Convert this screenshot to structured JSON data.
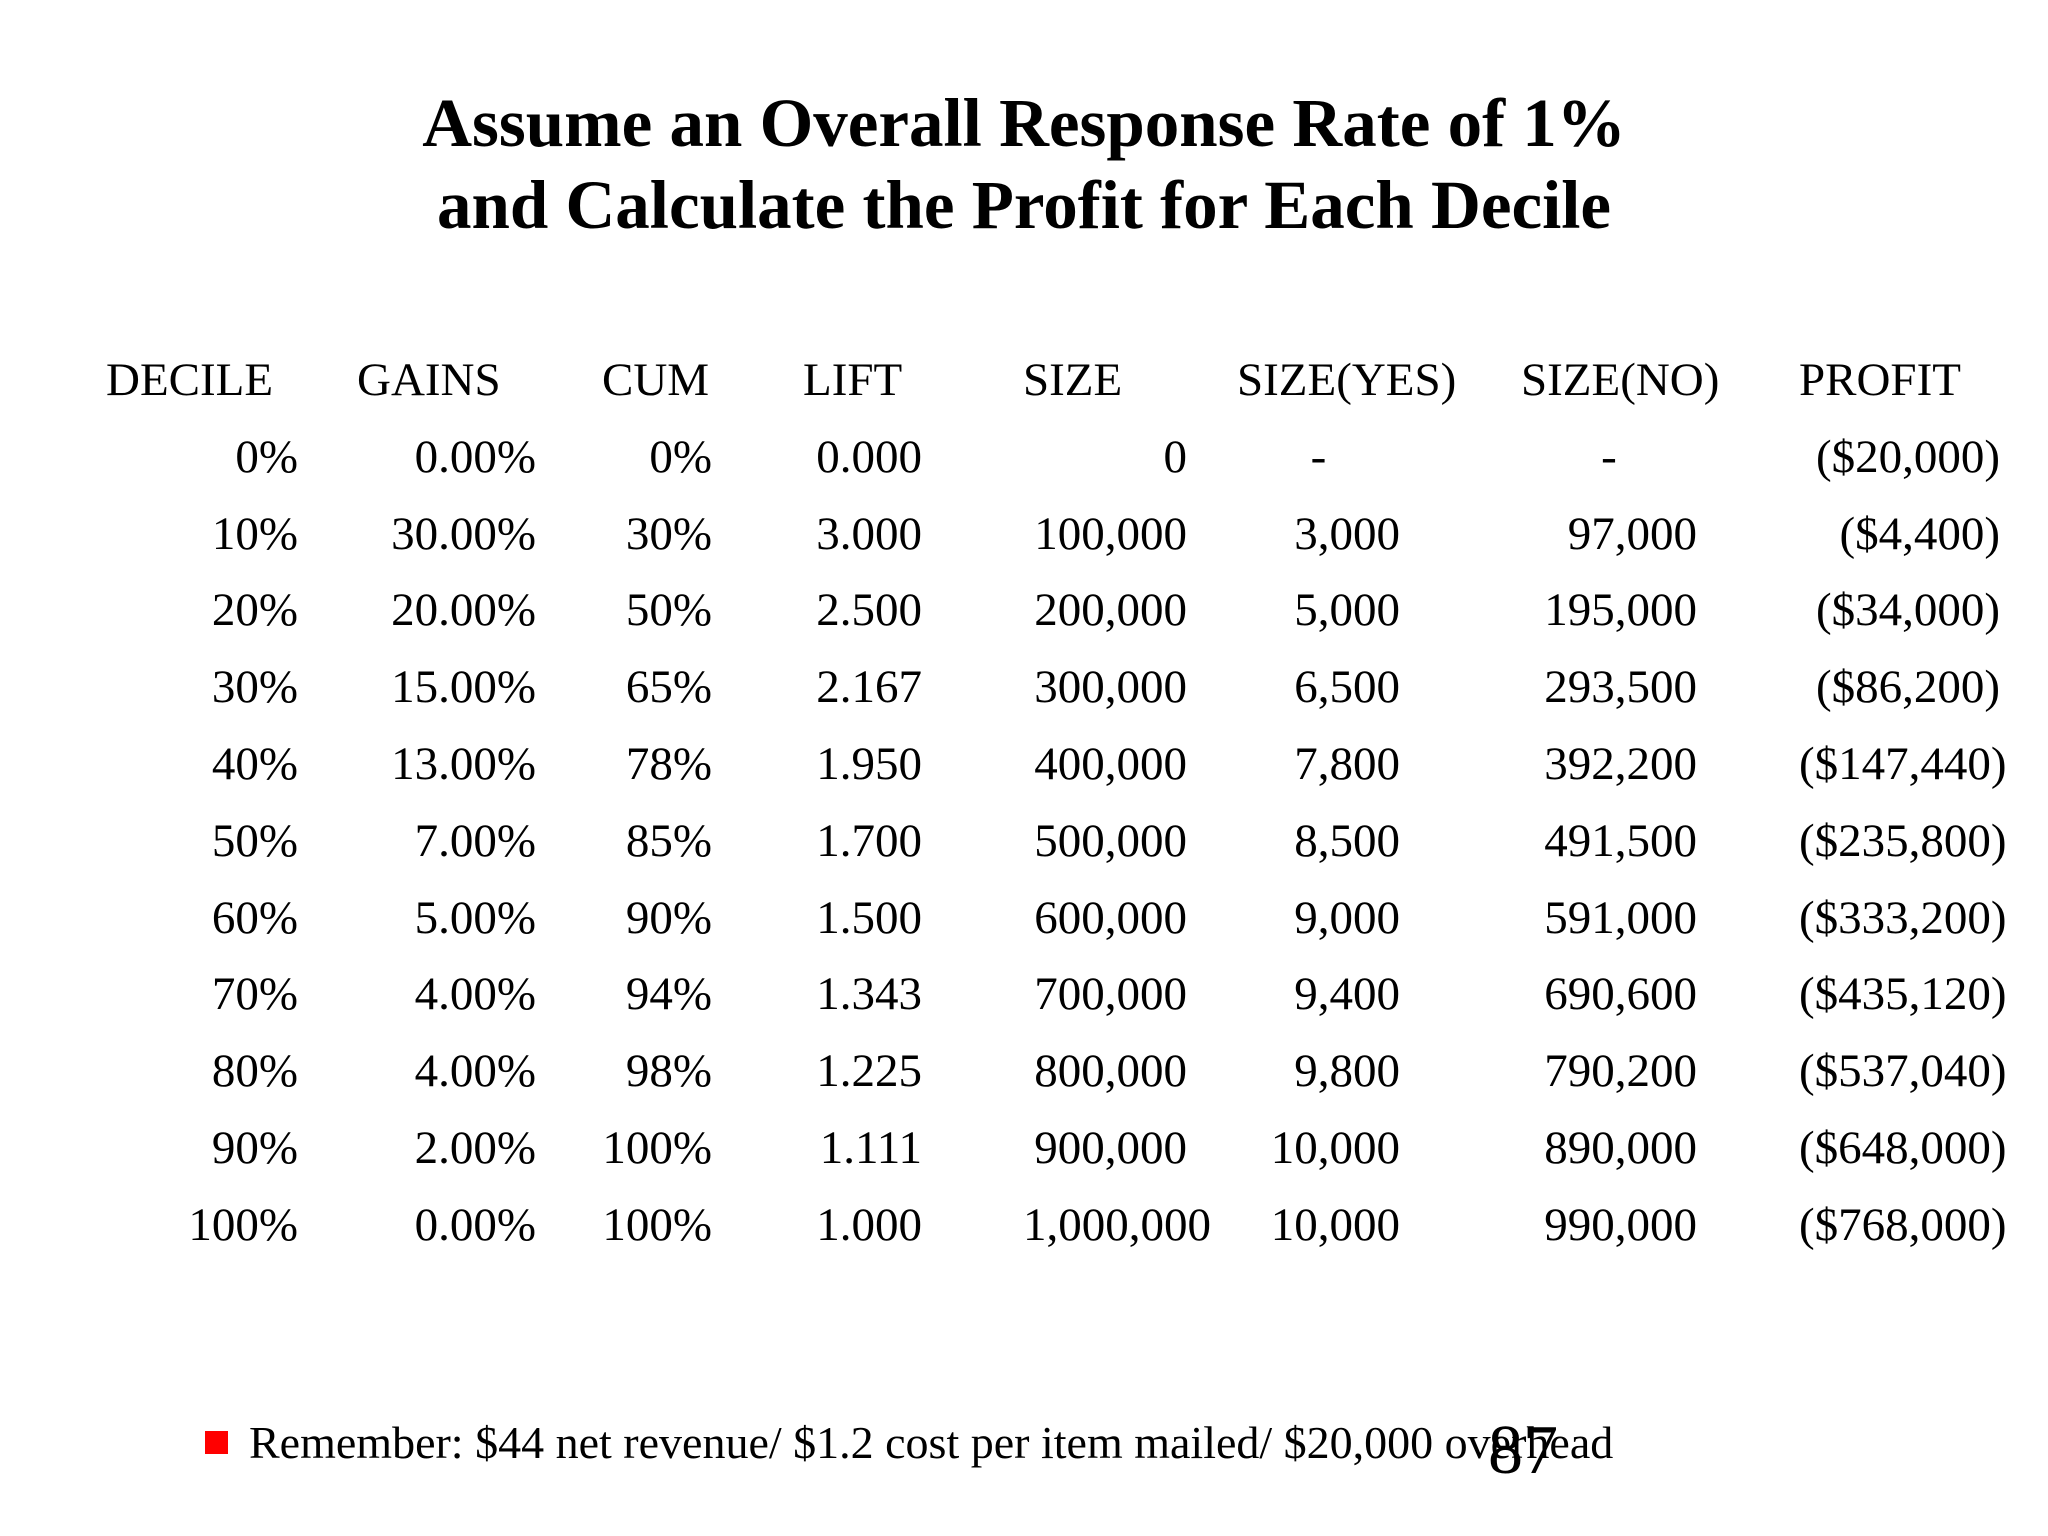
{
  "slide": {
    "title_line1": "Assume an Overall Response Rate of 1%",
    "title_line2": "and Calculate the Profit for Each Decile",
    "page_number": "87",
    "footnote": {
      "bullet_color": "#ff0000",
      "text": "Remember: $44 net revenue/ $1.2 cost per item mailed/ $20,000 overhead"
    }
  },
  "table": {
    "columns": [
      "DECILE",
      "GAINS",
      "CUM",
      "LIFT",
      "SIZE",
      "SIZE(YES)",
      "SIZE(NO)",
      "PROFIT"
    ],
    "rows": [
      [
        "0%",
        "0.00%",
        "0%",
        "0.000",
        "0",
        "-",
        "-",
        "($20,000)"
      ],
      [
        "10%",
        "30.00%",
        "30%",
        "3.000",
        "100,000",
        "3,000",
        "97,000",
        "($4,400)"
      ],
      [
        "20%",
        "20.00%",
        "50%",
        "2.500",
        "200,000",
        "5,000",
        "195,000",
        "($34,000)"
      ],
      [
        "30%",
        "15.00%",
        "65%",
        "2.167",
        "300,000",
        "6,500",
        "293,500",
        "($86,200)"
      ],
      [
        "40%",
        "13.00%",
        "78%",
        "1.950",
        "400,000",
        "7,800",
        "392,200",
        "($147,440)"
      ],
      [
        "50%",
        "7.00%",
        "85%",
        "1.700",
        "500,000",
        "8,500",
        "491,500",
        "($235,800)"
      ],
      [
        "60%",
        "5.00%",
        "90%",
        "1.500",
        "600,000",
        "9,000",
        "591,000",
        "($333,200)"
      ],
      [
        "70%",
        "4.00%",
        "94%",
        "1.343",
        "700,000",
        "9,400",
        "690,600",
        "($435,120)"
      ],
      [
        "80%",
        "4.00%",
        "98%",
        "1.225",
        "800,000",
        "9,800",
        "790,200",
        "($537,040)"
      ],
      [
        "90%",
        "2.00%",
        "100%",
        "1.111",
        "900,000",
        "10,000",
        "890,000",
        "($648,000)"
      ],
      [
        "100%",
        "0.00%",
        "100%",
        "1.000",
        "1,000,000",
        "10,000",
        "990,000",
        "($768,000)"
      ]
    ]
  }
}
